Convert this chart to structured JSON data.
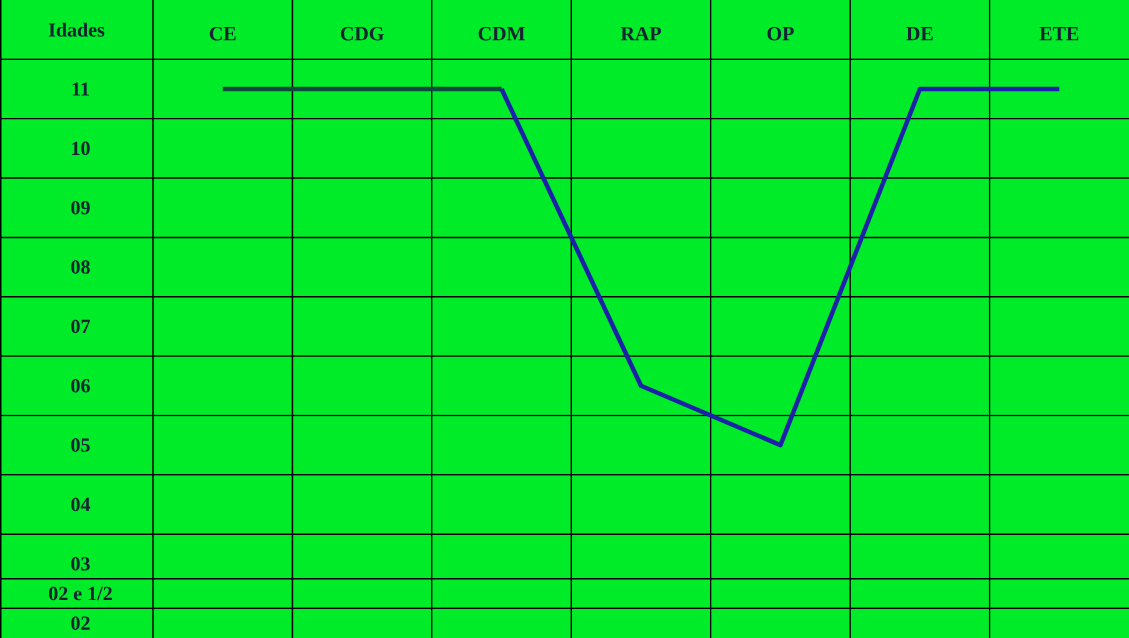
{
  "chart_data": {
    "type": "line",
    "ylabel": "Idades",
    "categories": [
      "CE",
      "CDG",
      "CDM",
      "RAP",
      "OP",
      "DE",
      "ETE"
    ],
    "series": [
      {
        "color": "#0e4a3c",
        "values": [
          11,
          11,
          11,
          null,
          null,
          null,
          null
        ]
      },
      {
        "color": "#1c22a8",
        "values": [
          null,
          null,
          11,
          6,
          5,
          11,
          11
        ]
      }
    ],
    "ylim": [
      1.75,
      12.5
    ],
    "yticks": [
      {
        "value": 11,
        "label": "11"
      },
      {
        "value": 10,
        "label": "10"
      },
      {
        "value": 9,
        "label": "09"
      },
      {
        "value": 8,
        "label": "08"
      },
      {
        "value": 7,
        "label": "07"
      },
      {
        "value": 6,
        "label": "06"
      },
      {
        "value": 5,
        "label": "05"
      },
      {
        "value": 4,
        "label": "04"
      },
      {
        "value": 3,
        "label": "03"
      },
      {
        "value": 2.5,
        "label": "02 e 1/2"
      },
      {
        "value": 2,
        "label": "02"
      }
    ],
    "grid": true,
    "marker": "none",
    "line_style": "solid"
  }
}
